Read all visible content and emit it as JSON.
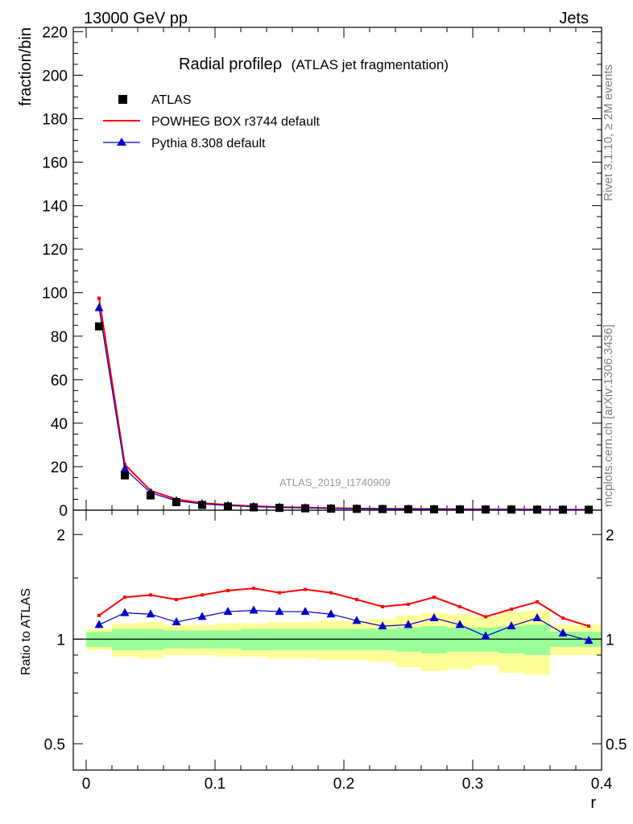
{
  "header": {
    "left": "13000 GeV pp",
    "right": "Jets"
  },
  "side_text": {
    "top": "Rivet 3.1.10, ≥ 2M events",
    "bottom": "mcplots.cern.ch [arXiv:1306.3436]"
  },
  "watermark": "ATLAS_2019_I1740909",
  "colors": {
    "atlas": "#000000",
    "powheg": "#ff0000",
    "pythia": "#0000cc",
    "band_inner": "#99ff99",
    "band_outer": "#ffff99",
    "unity_line": "#000000"
  },
  "chart_data": [
    {
      "type": "scatter",
      "panel": "main",
      "title": "Radial profileρ",
      "subtitle": "(ATLAS jet fragmentation)",
      "ylabel": "fraction/bin",
      "xlabel": "",
      "xlim": [
        -0.01,
        0.4
      ],
      "ylim": [
        0,
        222
      ],
      "yticks": [
        "0",
        "20",
        "40",
        "60",
        "80",
        "100",
        "120",
        "140",
        "160",
        "180",
        "200",
        "220"
      ],
      "legend_position": "top-left",
      "x": [
        0.01,
        0.03,
        0.05,
        0.07,
        0.09,
        0.11,
        0.13,
        0.15,
        0.17,
        0.19,
        0.21,
        0.23,
        0.25,
        0.27,
        0.29,
        0.31,
        0.33,
        0.35,
        0.37,
        0.39
      ],
      "series": [
        {
          "name": "ATLAS",
          "style": "square",
          "values": [
            84.5,
            16.0,
            6.8,
            3.7,
            2.4,
            1.7,
            1.3,
            1.05,
            0.85,
            0.7,
            0.6,
            0.5,
            0.45,
            0.4,
            0.35,
            0.3,
            0.28,
            0.25,
            0.22,
            0.2
          ]
        },
        {
          "name": "POWHEG BOX r3744 default",
          "style": "line",
          "values": [
            97.5,
            21.0,
            9.0,
            5.0,
            3.3,
            2.4,
            1.85,
            1.45,
            1.2,
            0.97,
            0.8,
            0.65,
            0.59,
            0.55,
            0.46,
            0.37,
            0.35,
            0.33,
            0.26,
            0.22
          ]
        },
        {
          "name": "Pythia 8.308 default",
          "style": "triangle",
          "values": [
            93.0,
            19.0,
            8.0,
            4.3,
            2.9,
            2.1,
            1.6,
            1.28,
            1.03,
            0.85,
            0.69,
            0.56,
            0.51,
            0.48,
            0.39,
            0.31,
            0.31,
            0.29,
            0.23,
            0.2
          ]
        }
      ]
    },
    {
      "type": "line",
      "panel": "ratio",
      "ylabel": "Ratio to ATLAS",
      "xlabel": "r",
      "xlim": [
        -0.01,
        0.4
      ],
      "ylim": [
        0.42,
        2.35
      ],
      "yscale": "log",
      "yticks": [
        "0.5",
        "1",
        "2"
      ],
      "xticks": [
        "0",
        "0.1",
        "0.2",
        "0.3",
        "0.4"
      ],
      "x": [
        0.01,
        0.03,
        0.05,
        0.07,
        0.09,
        0.11,
        0.13,
        0.15,
        0.17,
        0.19,
        0.21,
        0.23,
        0.25,
        0.27,
        0.29,
        0.31,
        0.33,
        0.35,
        0.37,
        0.39
      ],
      "bin_edges": [
        0,
        0.02,
        0.04,
        0.06,
        0.08,
        0.1,
        0.12,
        0.14,
        0.16,
        0.18,
        0.2,
        0.22,
        0.24,
        0.26,
        0.28,
        0.3,
        0.32,
        0.34,
        0.36,
        0.38,
        0.4
      ],
      "band_inner": {
        "low": [
          0.95,
          0.93,
          0.93,
          0.94,
          0.94,
          0.94,
          0.93,
          0.93,
          0.93,
          0.93,
          0.93,
          0.93,
          0.92,
          0.91,
          0.92,
          0.92,
          0.91,
          0.9,
          0.95,
          0.95
        ],
        "high": [
          1.05,
          1.07,
          1.07,
          1.06,
          1.06,
          1.06,
          1.07,
          1.07,
          1.07,
          1.07,
          1.07,
          1.07,
          1.08,
          1.09,
          1.08,
          1.08,
          1.09,
          1.1,
          1.05,
          1.05
        ]
      },
      "band_outer": {
        "low": [
          0.93,
          0.89,
          0.88,
          0.9,
          0.9,
          0.89,
          0.89,
          0.88,
          0.88,
          0.87,
          0.87,
          0.86,
          0.83,
          0.81,
          0.82,
          0.84,
          0.8,
          0.79,
          0.9,
          0.9
        ],
        "high": [
          1.07,
          1.11,
          1.12,
          1.1,
          1.1,
          1.11,
          1.11,
          1.12,
          1.12,
          1.13,
          1.13,
          1.14,
          1.17,
          1.19,
          1.18,
          1.16,
          1.2,
          1.21,
          1.1,
          1.1
        ]
      },
      "series": [
        {
          "name": "POWHEG BOX r3744 default",
          "values": [
            1.17,
            1.32,
            1.34,
            1.3,
            1.34,
            1.38,
            1.4,
            1.36,
            1.39,
            1.36,
            1.3,
            1.24,
            1.26,
            1.32,
            1.24,
            1.16,
            1.22,
            1.28,
            1.15,
            1.09
          ]
        },
        {
          "name": "Pythia 8.308 default",
          "values": [
            1.1,
            1.19,
            1.18,
            1.12,
            1.16,
            1.2,
            1.21,
            1.2,
            1.2,
            1.18,
            1.13,
            1.09,
            1.1,
            1.15,
            1.1,
            1.02,
            1.09,
            1.15,
            1.04,
            0.99
          ]
        }
      ]
    }
  ]
}
